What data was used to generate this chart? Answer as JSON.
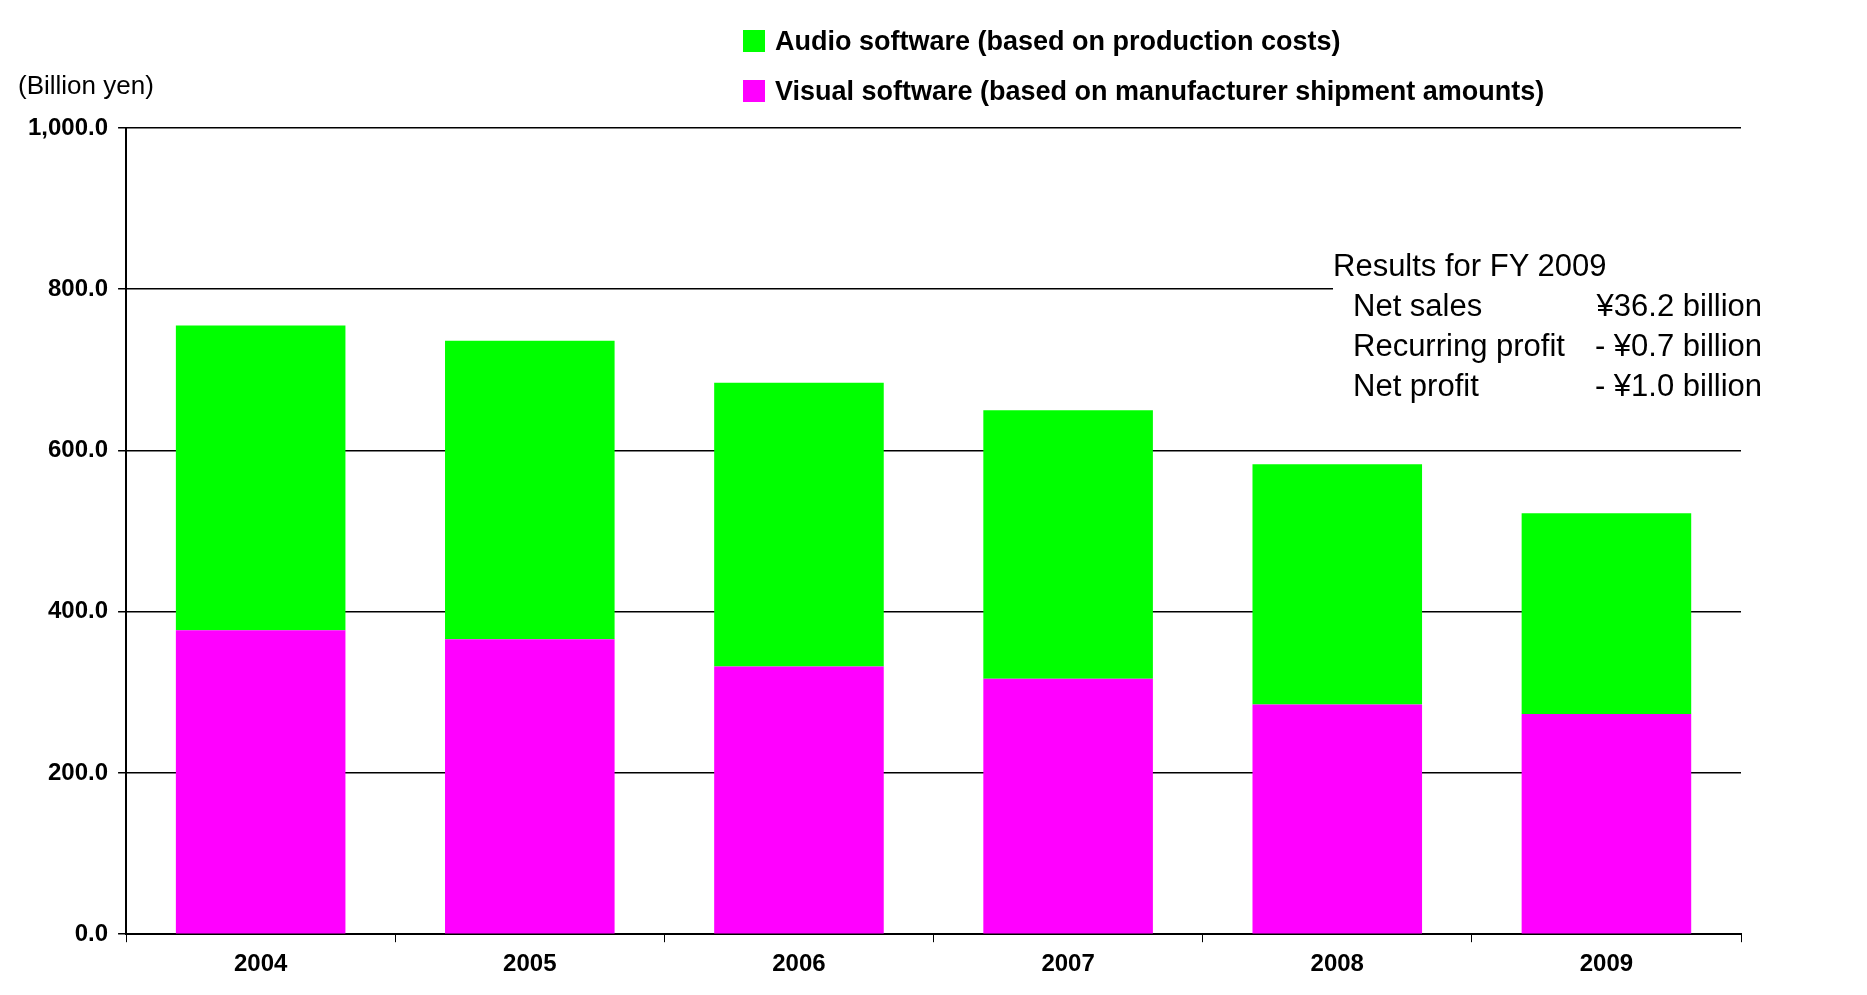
{
  "chart_data": {
    "type": "bar",
    "stacked": true,
    "ylabel": "(Billion yen)",
    "categories": [
      "2004",
      "2005",
      "2006",
      "2007",
      "2008",
      "2009"
    ],
    "series": [
      {
        "name": "Visual software (based on manufacturer shipment amounts)",
        "color": "#ff00ff",
        "values": [
          377,
          366,
          332,
          317,
          285,
          273
        ]
      },
      {
        "name": "Audio software (based on production costs)",
        "color": "#00ff00",
        "values": [
          378,
          370,
          352,
          333,
          298,
          249
        ]
      }
    ],
    "ylim": [
      0,
      1000
    ],
    "yticks": [
      {
        "value": 0,
        "label": "0.0"
      },
      {
        "value": 200,
        "label": "200.0"
      },
      {
        "value": 400,
        "label": "400.0"
      },
      {
        "value": 600,
        "label": "600.0"
      },
      {
        "value": 800,
        "label": "800.0"
      },
      {
        "value": 1000,
        "label": "1,000.0"
      }
    ],
    "grid": "y",
    "legend": "top",
    "annotations": [
      "Results for FY 2009",
      "Net sales",
      "¥36.2 billion",
      "Recurring profit",
      "- ¥0.7 billion",
      "Net profit",
      "- ¥1.0 billion"
    ]
  }
}
